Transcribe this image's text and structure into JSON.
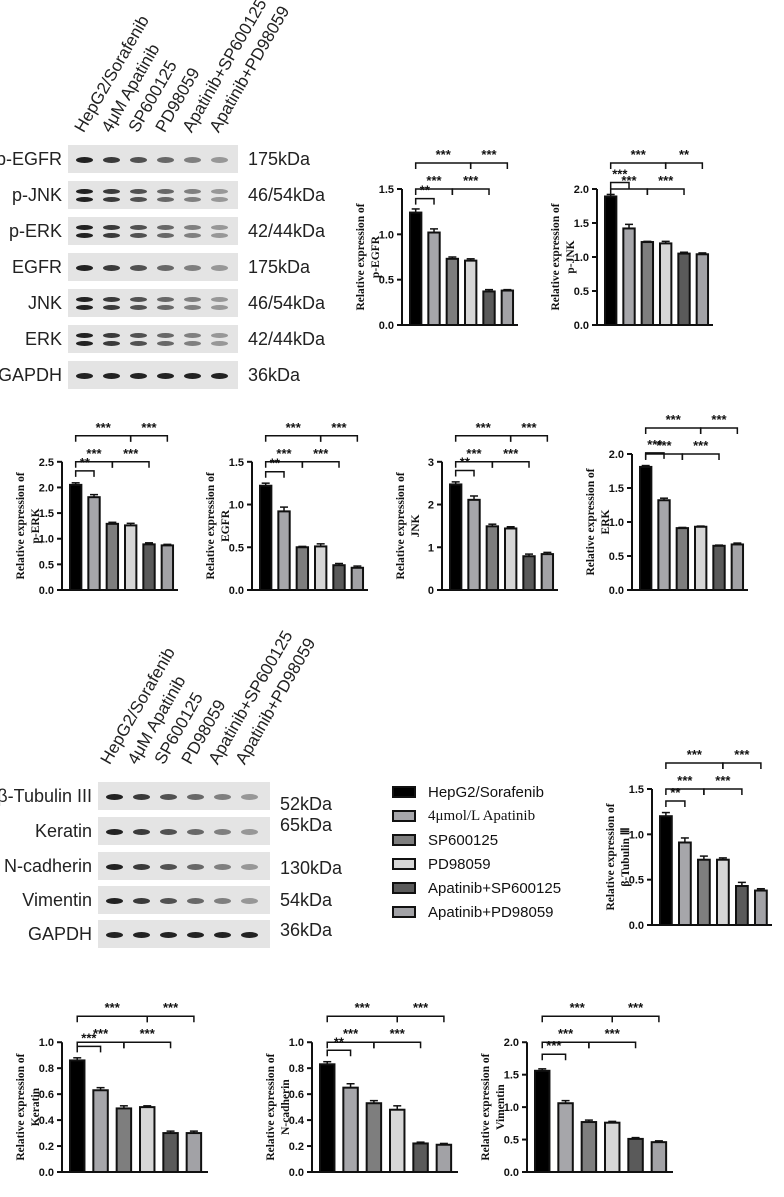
{
  "groups": [
    "HepG2/Sorafenib",
    "4μM Apatinib",
    "SP600125",
    "PD98059",
    "Apatinib+SP600125",
    "Apatinib+PD98059"
  ],
  "bar_colors": [
    "#000000",
    "#a6a6aa",
    "#7e7e7e",
    "#d6d6d6",
    "#5a5a5a",
    "#a2a2a6"
  ],
  "blot1": {
    "lanes": [
      "HepG2/Sorafenib",
      "4μM Apatinib",
      "SP600125",
      "PD98059",
      "Apatinib+SP600125",
      "Apatinib+PD98059"
    ],
    "rows": [
      {
        "name": "p-EGFR",
        "kda": "175kDa"
      },
      {
        "name": "p-JNK",
        "kda": "46/54kDa"
      },
      {
        "name": "p-ERK",
        "kda": "42/44kDa"
      },
      {
        "name": "EGFR",
        "kda": "175kDa"
      },
      {
        "name": "JNK",
        "kda": "46/54kDa"
      },
      {
        "name": "ERK",
        "kda": "42/44kDa"
      },
      {
        "name": "GAPDH",
        "kda": "36kDa"
      }
    ]
  },
  "blot2": {
    "lanes": [
      "HepG2/Sorafenib",
      "4μM Apatinib",
      "SP600125",
      "PD98059",
      "Apatinib+SP600125",
      "Apatinib+PD98059"
    ],
    "rows": [
      {
        "name": "β-Tubulin III",
        "kda": "52kDa"
      },
      {
        "name": "Keratin",
        "kda": "65kDa"
      },
      {
        "name": "N-cadherin",
        "kda": "130kDa"
      },
      {
        "name": "Vimentin",
        "kda": "54kDa"
      },
      {
        "name": "GAPDH",
        "kda": "36kDa"
      }
    ]
  },
  "legend": {
    "items": [
      {
        "label": "HepG2/Sorafenib",
        "color": "#000000"
      },
      {
        "label": "4μmol/L Apatinib",
        "color": "#a6a6aa"
      },
      {
        "label": "SP600125",
        "color": "#7e7e7e"
      },
      {
        "label": "PD98059",
        "color": "#d6d6d6"
      },
      {
        "label": "Apatinib+SP600125",
        "color": "#5a5a5a"
      },
      {
        "label": "Apatinib+PD98059",
        "color": "#a2a2a6"
      }
    ]
  },
  "chart_data": [
    {
      "id": "p-EGFR",
      "type": "bar",
      "title": "",
      "ylabel": "Relative expression of p-EGFR",
      "ylabel_lines": [
        "Relative expression of",
        "p-EGFR"
      ],
      "categories": [
        "HepG2/Sorafenib",
        "4μmol/L Apatinib",
        "SP600125",
        "PD98059",
        "Apatinib+SP600125",
        "Apatinib+PD98059"
      ],
      "values": [
        1.24,
        1.02,
        0.73,
        0.71,
        0.37,
        0.38
      ],
      "errors": [
        0.04,
        0.04,
        0.02,
        0.02,
        0.02,
        0.01
      ],
      "ylim": [
        0,
        1.5
      ],
      "yticks": [
        "0.0",
        "0.5",
        "1.0",
        "1.5"
      ],
      "significance": [
        {
          "label": "**",
          "from": 0,
          "to": 1
        },
        {
          "label": "***",
          "from": 0,
          "to": 2
        },
        {
          "label": "***",
          "from": 2,
          "to": 4
        },
        {
          "label": "***",
          "from": 0,
          "to": 3
        },
        {
          "label": "***",
          "from": 3,
          "to": 5
        }
      ]
    },
    {
      "id": "p-JNK",
      "type": "bar",
      "title": "",
      "ylabel": "Relative expression of p-JNK",
      "ylabel_lines": [
        "Relative expression of",
        "p-JNK"
      ],
      "categories": [
        "HepG2/Sorafenib",
        "4μmol/L Apatinib",
        "SP600125",
        "PD98059",
        "Apatinib+SP600125",
        "Apatinib+PD98059"
      ],
      "values": [
        1.89,
        1.42,
        1.22,
        1.2,
        1.05,
        1.04
      ],
      "errors": [
        0.03,
        0.06,
        0.01,
        0.03,
        0.02,
        0.02
      ],
      "ylim": [
        0,
        2.0
      ],
      "yticks": [
        "0.0",
        "0.5",
        "1.0",
        "1.5",
        "2.0"
      ],
      "significance": [
        {
          "label": "***",
          "from": 0,
          "to": 1
        },
        {
          "label": "***",
          "from": 0,
          "to": 2
        },
        {
          "label": "***",
          "from": 2,
          "to": 4
        },
        {
          "label": "***",
          "from": 0,
          "to": 3
        },
        {
          "label": "**",
          "from": 3,
          "to": 5
        }
      ]
    },
    {
      "id": "p-ERK",
      "type": "bar",
      "title": "",
      "ylabel": "Relative expression of p-ERK",
      "ylabel_lines": [
        "Relative expression of",
        "p-ERK"
      ],
      "categories": [
        "HepG2/Sorafenib",
        "4μmol/L Apatinib",
        "SP600125",
        "PD98059",
        "Apatinib+SP600125",
        "Apatinib+PD98059"
      ],
      "values": [
        2.05,
        1.81,
        1.29,
        1.26,
        0.89,
        0.87
      ],
      "errors": [
        0.04,
        0.05,
        0.03,
        0.04,
        0.03,
        0.02
      ],
      "ylim": [
        0,
        2.5
      ],
      "yticks": [
        "0.0",
        "0.5",
        "1.0",
        "1.5",
        "2.0",
        "2.5"
      ],
      "significance": [
        {
          "label": "**",
          "from": 0,
          "to": 1
        },
        {
          "label": "***",
          "from": 0,
          "to": 2
        },
        {
          "label": "***",
          "from": 2,
          "to": 4
        },
        {
          "label": "***",
          "from": 0,
          "to": 3
        },
        {
          "label": "***",
          "from": 3,
          "to": 5
        }
      ]
    },
    {
      "id": "EGFR",
      "type": "bar",
      "title": "",
      "ylabel": "Relative expression of EGFR",
      "ylabel_lines": [
        "Relative expression of",
        "EGFR"
      ],
      "categories": [
        "HepG2/Sorafenib",
        "4μmol/L Apatinib",
        "SP600125",
        "PD98059",
        "Apatinib+SP600125",
        "Apatinib+PD98059"
      ],
      "values": [
        1.22,
        0.92,
        0.5,
        0.51,
        0.29,
        0.26
      ],
      "errors": [
        0.03,
        0.05,
        0.01,
        0.03,
        0.02,
        0.02
      ],
      "ylim": [
        0,
        1.5
      ],
      "yticks": [
        "0.0",
        "0.5",
        "1.0",
        "1.5"
      ],
      "significance": [
        {
          "label": "**",
          "from": 0,
          "to": 1
        },
        {
          "label": "***",
          "from": 0,
          "to": 2
        },
        {
          "label": "***",
          "from": 2,
          "to": 4
        },
        {
          "label": "***",
          "from": 0,
          "to": 3
        },
        {
          "label": "***",
          "from": 3,
          "to": 5
        }
      ]
    },
    {
      "id": "JNK",
      "type": "bar",
      "title": "",
      "ylabel": "Relative expression of JNK",
      "ylabel_lines": [
        "Relative expression of",
        "JNK"
      ],
      "categories": [
        "HepG2/Sorafenib",
        "4μmol/L Apatinib",
        "SP600125",
        "PD98059",
        "Apatinib+SP600125",
        "Apatinib+PD98059"
      ],
      "values": [
        2.47,
        2.11,
        1.49,
        1.44,
        0.79,
        0.84
      ],
      "errors": [
        0.06,
        0.09,
        0.05,
        0.04,
        0.05,
        0.04
      ],
      "ylim": [
        0,
        3
      ],
      "yticks": [
        "0",
        "1",
        "2",
        "3"
      ],
      "significance": [
        {
          "label": "**",
          "from": 0,
          "to": 1
        },
        {
          "label": "***",
          "from": 0,
          "to": 2
        },
        {
          "label": "***",
          "from": 2,
          "to": 4
        },
        {
          "label": "***",
          "from": 0,
          "to": 3
        },
        {
          "label": "***",
          "from": 3,
          "to": 5
        }
      ]
    },
    {
      "id": "ERK",
      "type": "bar",
      "title": "",
      "ylabel": "Relative expression of ERK",
      "ylabel_lines": [
        "Relative expression of",
        "ERK"
      ],
      "categories": [
        "HepG2/Sorafenib",
        "4μmol/L Apatinib",
        "SP600125",
        "PD98059",
        "Apatinib+SP600125",
        "Apatinib+PD98059"
      ],
      "values": [
        1.81,
        1.32,
        0.91,
        0.93,
        0.65,
        0.67
      ],
      "errors": [
        0.02,
        0.03,
        0.01,
        0.01,
        0.01,
        0.02
      ],
      "ylim": [
        0,
        2.0
      ],
      "yticks": [
        "0.0",
        "0.5",
        "1.0",
        "1.5",
        "2.0"
      ],
      "significance": [
        {
          "label": "***",
          "from": 0,
          "to": 1
        },
        {
          "label": "***",
          "from": 0,
          "to": 2
        },
        {
          "label": "***",
          "from": 2,
          "to": 4
        },
        {
          "label": "***",
          "from": 0,
          "to": 3
        },
        {
          "label": "***",
          "from": 3,
          "to": 5
        }
      ]
    },
    {
      "id": "beta-Tubulin III",
      "type": "bar",
      "title": "",
      "ylabel": "Relative expression of β-Tubulin III",
      "ylabel_lines": [
        "Relative expression of",
        "β-Tubulin Ⅲ"
      ],
      "categories": [
        "HepG2/Sorafenib",
        "4μmol/L Apatinib",
        "SP600125",
        "PD98059",
        "Apatinib+SP600125",
        "Apatinib+PD98059"
      ],
      "values": [
        1.2,
        0.91,
        0.72,
        0.72,
        0.43,
        0.38
      ],
      "errors": [
        0.04,
        0.05,
        0.04,
        0.02,
        0.04,
        0.02
      ],
      "ylim": [
        0,
        1.5
      ],
      "yticks": [
        "0.0",
        "0.5",
        "1.0",
        "1.5"
      ],
      "significance": [
        {
          "label": "**",
          "from": 0,
          "to": 1
        },
        {
          "label": "***",
          "from": 0,
          "to": 2
        },
        {
          "label": "***",
          "from": 2,
          "to": 4
        },
        {
          "label": "***",
          "from": 0,
          "to": 3
        },
        {
          "label": "***",
          "from": 3,
          "to": 5
        }
      ]
    },
    {
      "id": "Keratin",
      "type": "bar",
      "title": "",
      "ylabel": "Relative expression of Keratin",
      "ylabel_lines": [
        "Relative expression of",
        "Keratin"
      ],
      "categories": [
        "HepG2/Sorafenib",
        "4μmol/L Apatinib",
        "SP600125",
        "PD98059",
        "Apatinib+SP600125",
        "Apatinib+PD98059"
      ],
      "values": [
        0.86,
        0.63,
        0.49,
        0.5,
        0.3,
        0.3
      ],
      "errors": [
        0.02,
        0.02,
        0.02,
        0.01,
        0.015,
        0.015
      ],
      "ylim": [
        0,
        1.0
      ],
      "yticks": [
        "0.0",
        "0.2",
        "0.4",
        "0.6",
        "0.8",
        "1.0"
      ],
      "significance": [
        {
          "label": "***",
          "from": 0,
          "to": 1
        },
        {
          "label": "***",
          "from": 0,
          "to": 2
        },
        {
          "label": "***",
          "from": 2,
          "to": 4
        },
        {
          "label": "***",
          "from": 0,
          "to": 3
        },
        {
          "label": "***",
          "from": 3,
          "to": 5
        }
      ]
    },
    {
      "id": "N-cadherin",
      "type": "bar",
      "title": "",
      "ylabel": "Relative expression of N-cadherin",
      "ylabel_lines": [
        "Relative expression of",
        "N-cadherin"
      ],
      "categories": [
        "HepG2/Sorafenib",
        "4μmol/L Apatinib",
        "SP600125",
        "PD98059",
        "Apatinib+SP600125",
        "Apatinib+PD98059"
      ],
      "values": [
        0.83,
        0.65,
        0.53,
        0.48,
        0.22,
        0.21
      ],
      "errors": [
        0.02,
        0.03,
        0.02,
        0.03,
        0.01,
        0.01
      ],
      "ylim": [
        0,
        1.0
      ],
      "yticks": [
        "0.0",
        "0.2",
        "0.4",
        "0.6",
        "0.8",
        "1.0"
      ],
      "significance": [
        {
          "label": "**",
          "from": 0,
          "to": 1
        },
        {
          "label": "***",
          "from": 0,
          "to": 2
        },
        {
          "label": "***",
          "from": 2,
          "to": 4
        },
        {
          "label": "***",
          "from": 0,
          "to": 3
        },
        {
          "label": "***",
          "from": 3,
          "to": 5
        }
      ]
    },
    {
      "id": "Vimentin",
      "type": "bar",
      "title": "",
      "ylabel": "Relative expression of Vimentin",
      "ylabel_lines": [
        "Relative expression of",
        "Vimentin"
      ],
      "categories": [
        "HepG2/Sorafenib",
        "4μmol/L Apatinib",
        "SP600125",
        "PD98059",
        "Apatinib+SP600125",
        "Apatinib+PD98059"
      ],
      "values": [
        1.56,
        1.06,
        0.77,
        0.76,
        0.51,
        0.46
      ],
      "errors": [
        0.03,
        0.04,
        0.03,
        0.02,
        0.02,
        0.02
      ],
      "ylim": [
        0,
        2.0
      ],
      "yticks": [
        "0.0",
        "0.5",
        "1.0",
        "1.5",
        "2.0"
      ],
      "significance": [
        {
          "label": "***",
          "from": 0,
          "to": 1
        },
        {
          "label": "***",
          "from": 0,
          "to": 2
        },
        {
          "label": "***",
          "from": 2,
          "to": 4
        },
        {
          "label": "***",
          "from": 0,
          "to": 3
        },
        {
          "label": "***",
          "from": 3,
          "to": 5
        }
      ]
    }
  ]
}
